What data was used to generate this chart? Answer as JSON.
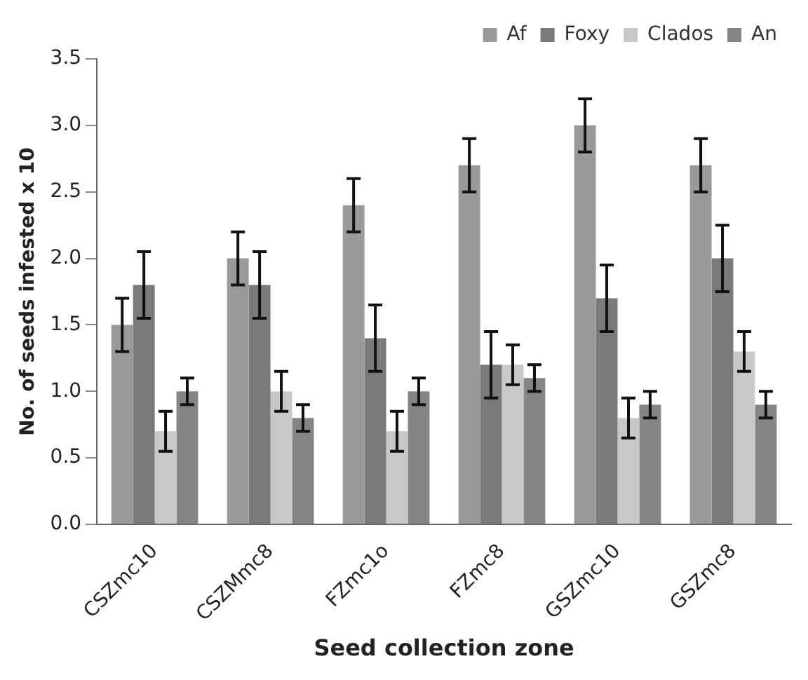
{
  "chart_data": {
    "type": "bar",
    "xlabel": "Seed collection zone",
    "ylabel": "No. of seeds infested x 10",
    "categories": [
      "CSZmc10",
      "CSZMmc8",
      "FZmc1o",
      "FZmc8",
      "GSZmc10",
      "GSZmc8"
    ],
    "series": [
      {
        "name": "Af",
        "color": "#9a9a9a",
        "values": [
          1.5,
          2.0,
          2.4,
          2.7,
          3.0,
          2.7
        ],
        "errors": [
          0.2,
          0.2,
          0.2,
          0.2,
          0.2,
          0.2
        ]
      },
      {
        "name": "Foxy",
        "color": "#7a7a7a",
        "values": [
          1.8,
          1.8,
          1.4,
          1.2,
          1.7,
          2.0
        ],
        "errors": [
          0.25,
          0.25,
          0.25,
          0.25,
          0.25,
          0.25
        ]
      },
      {
        "name": "Clados",
        "color": "#c8c8c8",
        "values": [
          0.7,
          1.0,
          0.7,
          1.2,
          0.8,
          1.3
        ],
        "errors": [
          0.15,
          0.15,
          0.15,
          0.15,
          0.15,
          0.15
        ]
      },
      {
        "name": "An",
        "color": "#858585",
        "values": [
          1.0,
          0.8,
          1.0,
          1.1,
          0.9,
          0.9
        ],
        "errors": [
          0.1,
          0.1,
          0.1,
          0.1,
          0.1,
          0.1
        ]
      }
    ],
    "ylim": [
      0,
      3.5
    ],
    "yticks": [
      {
        "value": 0,
        "label": "0.0"
      },
      {
        "value": 0.5,
        "label": "0.5"
      },
      {
        "value": 1,
        "label": "1.0"
      },
      {
        "value": 1.5,
        "label": "1.5"
      },
      {
        "value": 2,
        "label": "2.0"
      },
      {
        "value": 2.5,
        "label": "2.5"
      },
      {
        "value": 3,
        "label": "3.0"
      },
      {
        "value": 3.5,
        "label": "3.5"
      }
    ],
    "grid": false,
    "legend": "top"
  }
}
